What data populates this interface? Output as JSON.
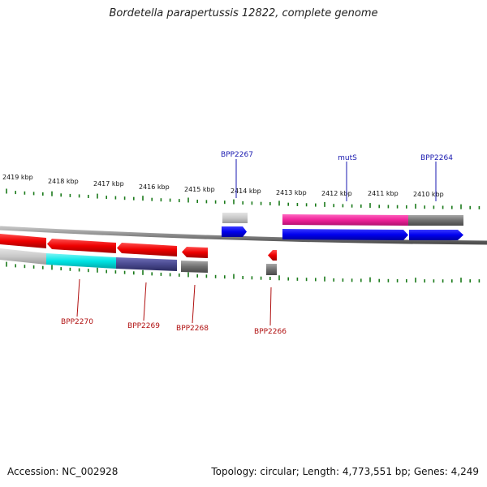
{
  "title": "Bordetella parapertussis 12822, complete genome",
  "accession": "Accession: NC_002928",
  "stats": "Topology: circular; Length: 4,773,551 bp; Genes: 4,249",
  "scale_labels": [
    "2419 kbp",
    "2418 kbp",
    "2417 kbp",
    "2416 kbp",
    "2415 kbp",
    "2414 kbp",
    "2413 kbp",
    "2412 kbp",
    "2411 kbp",
    "2410 kbp"
  ],
  "genes_top": [
    "BPP2267",
    "mutS",
    "BPP2264"
  ],
  "genes_bottom": [
    "BPP2270",
    "BPP2269",
    "BPP2268",
    "BPP2266"
  ],
  "colors": {
    "red": "#ff0000",
    "blue": "#0000ee",
    "magenta": "#ee2299",
    "cyan": "#00e5e5",
    "slate": "#4a4a90",
    "gray": "#707070",
    "lightgray": "#c8c8c8",
    "tick": "#1a7a1a",
    "genome": "#888888",
    "label_top": "#1a1ab0",
    "label_bottom": "#b01010"
  }
}
